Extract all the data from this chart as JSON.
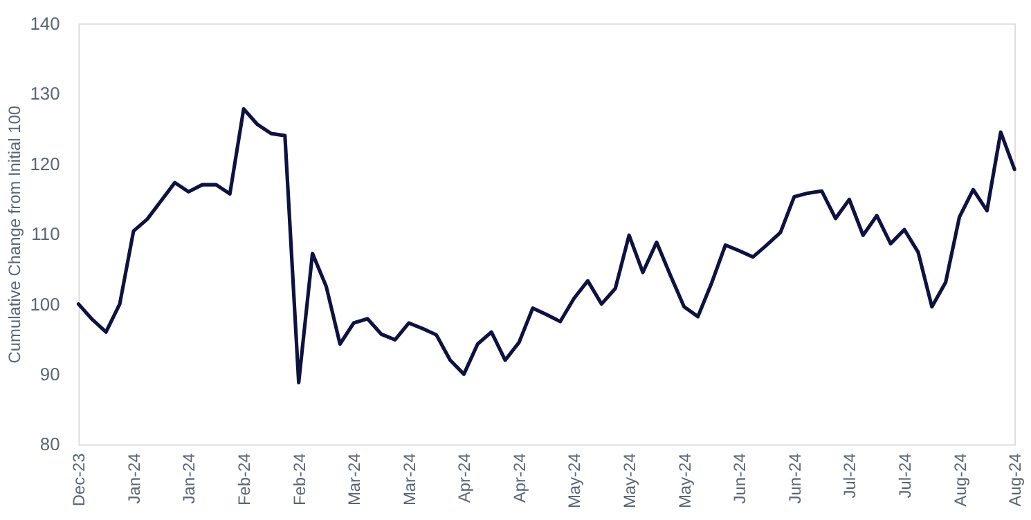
{
  "chart_data": {
    "type": "line",
    "ylabel": "Cumulative Change from Initial 100",
    "categories": [
      "Dec-23",
      null,
      null,
      null,
      "Jan-24",
      null,
      null,
      null,
      "Jan-24",
      null,
      null,
      null,
      "Feb-24",
      null,
      null,
      null,
      "Feb-24",
      null,
      null,
      null,
      "Mar-24",
      null,
      null,
      null,
      "Mar-24",
      null,
      null,
      null,
      "Apr-24",
      null,
      null,
      null,
      "Apr-24",
      null,
      null,
      null,
      "May-24",
      null,
      null,
      null,
      "May-24",
      null,
      null,
      null,
      "May-24",
      null,
      null,
      null,
      "Jun-24",
      null,
      null,
      null,
      "Jun-24",
      null,
      null,
      null,
      "Jul-24",
      null,
      null,
      null,
      "Jul-24",
      null,
      null,
      null,
      "Aug-24",
      null,
      null,
      null,
      "Aug-24"
    ],
    "series": [
      {
        "color": "#0d1240",
        "values": [
          100,
          97.8,
          96,
          100,
          110.4,
          112.1,
          114.7,
          117.3,
          116,
          117,
          117,
          115.7,
          127.8,
          125.6,
          124.3,
          124,
          88.8,
          107.2,
          102.5,
          94.3,
          97.3,
          97.9,
          95.7,
          94.9,
          97.3,
          96.5,
          95.6,
          92,
          90,
          94.3,
          96,
          92,
          94.5,
          99.4,
          98.5,
          97.5,
          100.8,
          103.3,
          100,
          102.2,
          109.8,
          104.5,
          108.8,
          104.1,
          99.6,
          98.2,
          103,
          108.4,
          107.6,
          106.7,
          108.4,
          110.2,
          115.3,
          115.8,
          116.1,
          112.2,
          114.9,
          109.8,
          112.6,
          108.6,
          110.6,
          107.4,
          99.6,
          103.1,
          112.4,
          116.3,
          113.3,
          124.5,
          119.2
        ]
      }
    ],
    "ylim": [
      80,
      140
    ],
    "yticks": [
      80,
      90,
      100,
      110,
      120,
      130,
      140
    ],
    "grid": false,
    "marker": "none",
    "line_style": "solid"
  }
}
